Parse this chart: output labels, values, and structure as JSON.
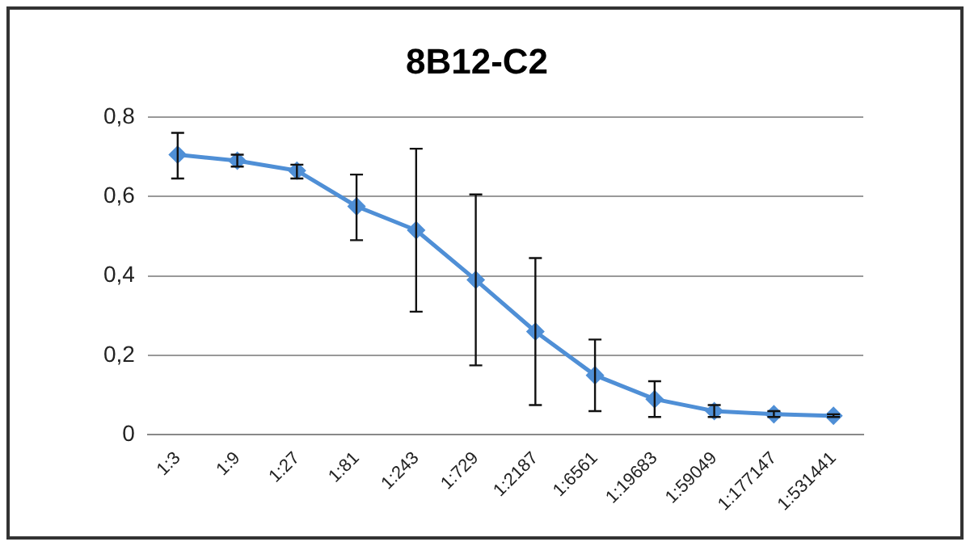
{
  "chart_data": {
    "type": "line",
    "title": "8B12-C2",
    "categories": [
      "1:3",
      "1:9",
      "1:27",
      "1:81",
      "1:243",
      "1:729",
      "1:2187",
      "1:6561",
      "1:19683",
      "1:59049",
      "1:177147",
      "1:531441"
    ],
    "series": [
      {
        "color": "#4f8fd6",
        "values": [
          0.705,
          0.69,
          0.665,
          0.575,
          0.515,
          0.39,
          0.26,
          0.15,
          0.09,
          0.06,
          0.052,
          0.048
        ],
        "errors": [
          [
            0.645,
            0.76
          ],
          [
            0.675,
            0.705
          ],
          [
            0.645,
            0.68
          ],
          [
            0.49,
            0.655
          ],
          [
            0.31,
            0.72
          ],
          [
            0.175,
            0.605
          ],
          [
            0.075,
            0.445
          ],
          [
            0.06,
            0.24
          ],
          [
            0.045,
            0.135
          ],
          [
            0.045,
            0.075
          ],
          [
            0.045,
            0.06
          ],
          [
            0.045,
            0.052
          ]
        ]
      }
    ],
    "ylim": [
      0,
      0.8
    ],
    "yticks": [
      {
        "value": 0,
        "label": "0"
      },
      {
        "value": 0.2,
        "label": "0,2"
      },
      {
        "value": 0.4,
        "label": "0,4"
      },
      {
        "value": 0.6,
        "label": "0,6"
      },
      {
        "value": 0.8,
        "label": "0,8"
      }
    ],
    "grid": "y",
    "legend": false,
    "marker": "diamond",
    "line_style": "solid"
  }
}
